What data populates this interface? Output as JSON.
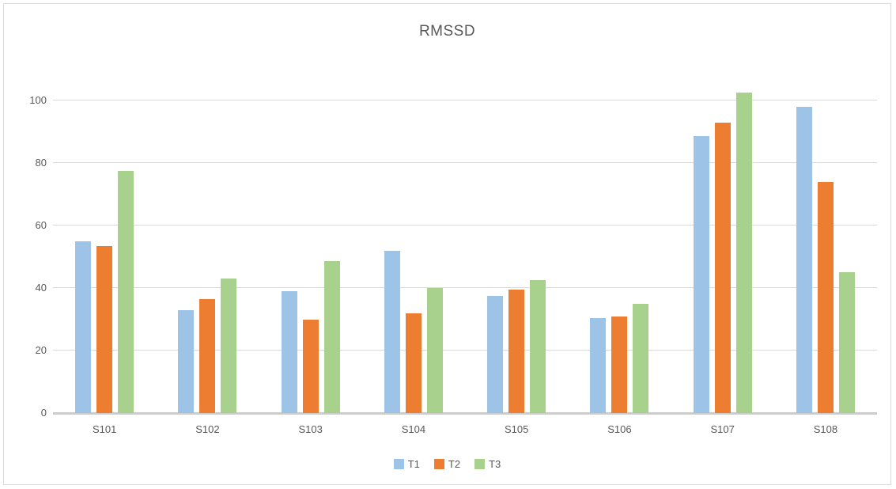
{
  "chart_data": {
    "type": "bar",
    "title": "RMSSD",
    "xlabel": "",
    "ylabel": "",
    "categories": [
      "S101",
      "S102",
      "S103",
      "S104",
      "S105",
      "S106",
      "S107",
      "S108"
    ],
    "series": [
      {
        "name": "T1",
        "color": "#9dc3e6",
        "values": [
          55,
          33,
          39,
          52,
          37.5,
          30.5,
          88.5,
          98
        ]
      },
      {
        "name": "T2",
        "color": "#ed7d31",
        "values": [
          53.5,
          36.5,
          30,
          32,
          39.5,
          31,
          93,
          74
        ]
      },
      {
        "name": "T3",
        "color": "#a9d18e",
        "values": [
          77.5,
          43,
          48.5,
          40,
          42.5,
          35,
          102.5,
          45
        ]
      }
    ],
    "ylim": [
      0,
      100
    ],
    "yticks": [
      0,
      20,
      40,
      60,
      80,
      100
    ],
    "grid": true,
    "legend_position": "bottom"
  },
  "style": {
    "title_color": "#595959",
    "tick_label_color": "#595959",
    "gridline_color": "#d9d9d9",
    "axis_line_color": "#cccccc",
    "frame_border_color": "#d9d9d9",
    "background": "#ffffff"
  }
}
